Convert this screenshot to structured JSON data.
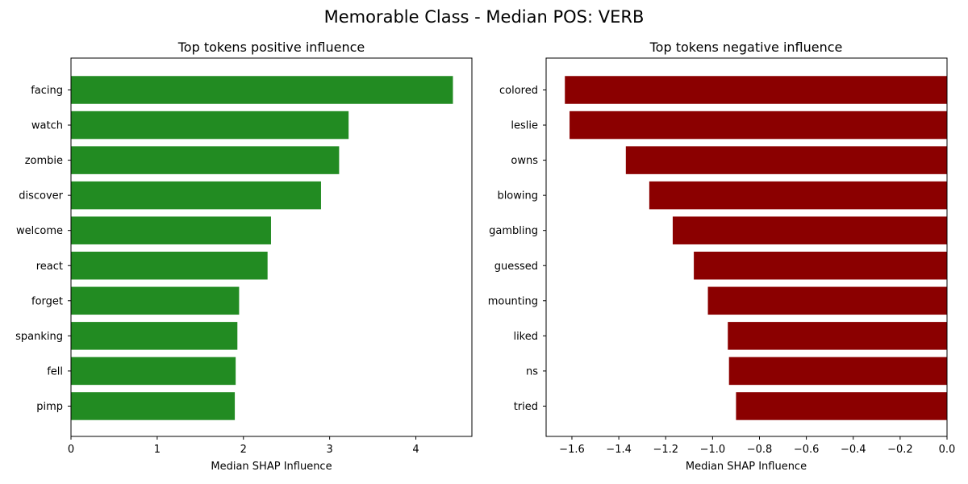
{
  "figure": {
    "title": "Memorable Class - Median POS: VERB"
  },
  "colors": {
    "positive": "#228b22",
    "negative": "#8b0000"
  },
  "chart_data": [
    {
      "type": "bar",
      "orientation": "horizontal",
      "title": "Top tokens positive influence",
      "xlabel": "Median SHAP Influence",
      "ylabel": "",
      "categories": [
        "facing",
        "watch",
        "zombie",
        "discover",
        "welcome",
        "react",
        "forget",
        "spanking",
        "fell",
        "pimp"
      ],
      "values": [
        4.43,
        3.22,
        3.11,
        2.9,
        2.32,
        2.28,
        1.95,
        1.93,
        1.91,
        1.9
      ],
      "xlim": [
        0,
        4.65
      ],
      "xticks": [
        0,
        1,
        2,
        3,
        4
      ],
      "xtick_labels": [
        "0",
        "1",
        "2",
        "3",
        "4"
      ],
      "grid": false,
      "color": "#228b22"
    },
    {
      "type": "bar",
      "orientation": "horizontal",
      "title": "Top tokens negative influence",
      "xlabel": "Median SHAP Influence",
      "ylabel": "",
      "categories": [
        "colored",
        "leslie",
        "owns",
        "blowing",
        "gambling",
        "guessed",
        "mounting",
        "liked",
        "ns",
        "tried"
      ],
      "values": [
        -1.63,
        -1.61,
        -1.37,
        -1.27,
        -1.17,
        -1.08,
        -1.02,
        -0.935,
        -0.93,
        -0.9
      ],
      "xlim": [
        -1.71,
        0
      ],
      "xticks": [
        -1.6,
        -1.4,
        -1.2,
        -1.0,
        -0.8,
        -0.6,
        -0.4,
        -0.2,
        0.0
      ],
      "xtick_labels": [
        "−1.6",
        "−1.4",
        "−1.2",
        "−1.0",
        "−0.8",
        "−0.6",
        "−0.4",
        "−0.2",
        "0.0"
      ],
      "grid": false,
      "color": "#8b0000"
    }
  ]
}
